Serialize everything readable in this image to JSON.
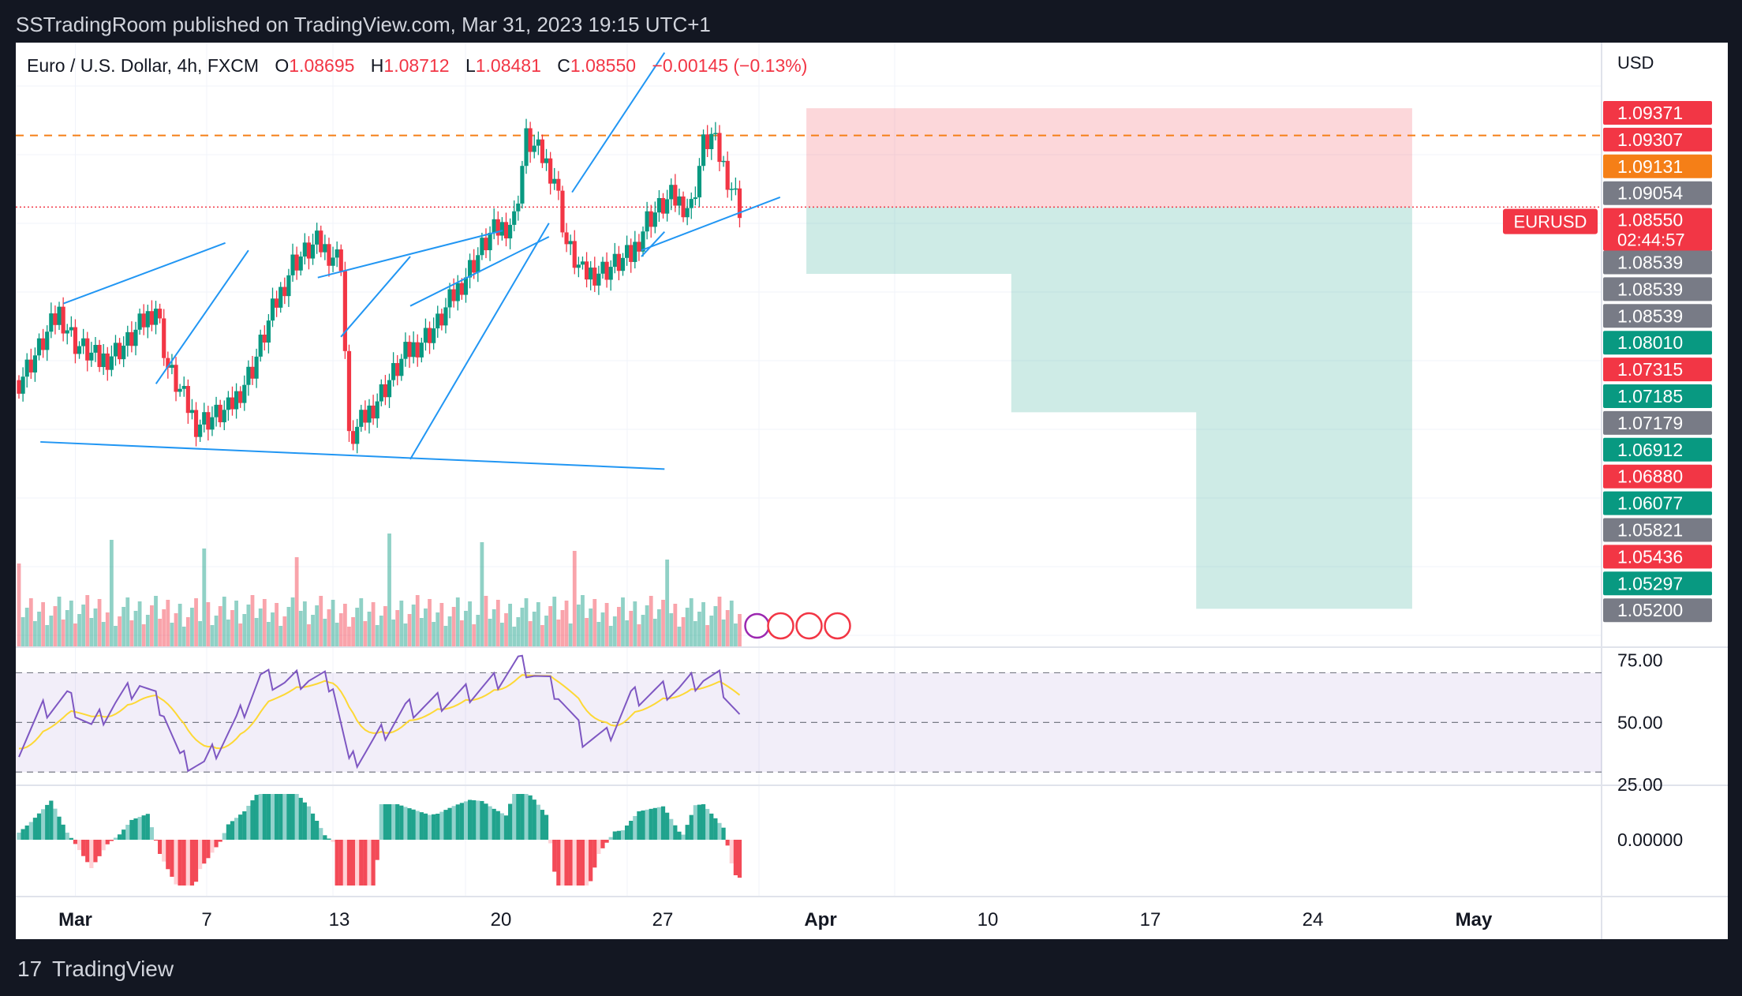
{
  "header": {
    "publisher_line": "SSTradingRoom published on TradingView.com, Mar 31, 2023 19:15 UTC+1"
  },
  "footer": {
    "brand": "TradingView",
    "logo_glyph": "17"
  },
  "legend": {
    "symbol": "Euro / U.S. Dollar, 4h, FXCM",
    "o_key": "O",
    "o_val": "1.08695",
    "h_key": "H",
    "h_val": "1.08712",
    "l_key": "L",
    "l_val": "1.08481",
    "c_key": "C",
    "c_val": "1.08550",
    "change": "−0.00145 (−0.13%)"
  },
  "price_axis": {
    "currency": "USD",
    "ticker_label": "EURUSD",
    "countdown": "02:44:57",
    "labels": [
      {
        "text": "1.09371",
        "color": "#f23645"
      },
      {
        "text": "1.09307",
        "color": "#f23645"
      },
      {
        "text": "1.09131",
        "color": "#f57f17"
      },
      {
        "text": "1.09054",
        "color": "#787b86"
      },
      {
        "text": "1.08550",
        "color": "#f23645"
      },
      {
        "text": "1.08539",
        "color": "#787b86"
      },
      {
        "text": "1.08539",
        "color": "#787b86"
      },
      {
        "text": "1.08539",
        "color": "#787b86"
      },
      {
        "text": "1.08010",
        "color": "#089981"
      },
      {
        "text": "1.07315",
        "color": "#f23645"
      },
      {
        "text": "1.07185",
        "color": "#089981"
      },
      {
        "text": "1.07179",
        "color": "#787b86"
      },
      {
        "text": "1.06912",
        "color": "#089981"
      },
      {
        "text": "1.06880",
        "color": "#f23645"
      },
      {
        "text": "1.06077",
        "color": "#089981"
      },
      {
        "text": "1.05821",
        "color": "#787b86"
      },
      {
        "text": "1.05436",
        "color": "#f23645"
      },
      {
        "text": "1.05297",
        "color": "#089981"
      },
      {
        "text": "1.05200",
        "color": "#787b86"
      }
    ]
  },
  "rsi_axis": [
    "75.00",
    "50.00",
    "25.00"
  ],
  "macd_axis": [
    "0.00000"
  ],
  "time_axis": [
    "Mar",
    "7",
    "13",
    "20",
    "27",
    "Apr",
    "10",
    "17",
    "24",
    "May"
  ],
  "colors": {
    "up": "#089981",
    "down": "#f23645",
    "trendline": "#2196f3",
    "rsi": "#7e57c2",
    "rsi_ma": "#fdd835",
    "level": "#f57f17"
  },
  "chart_data": {
    "type": "candlestick",
    "title": "Euro / U.S. Dollar, 4h, FXCM",
    "x_range": [
      "2023-02-28",
      "2023-05-07"
    ],
    "ylabel": "USD",
    "last_close": 1.0855,
    "resistance_level": 1.0913,
    "position": {
      "side": "short",
      "entry": 1.0855,
      "stop": 1.0935,
      "targets": [
        1.0801,
        1.0689,
        1.053
      ]
    },
    "trendlines": [
      {
        "from": [
          "2023-03-01",
          1.0777
        ],
        "to": [
          "2023-03-08",
          1.0826
        ]
      },
      {
        "from": [
          "2023-03-05",
          1.0712
        ],
        "to": [
          "2023-03-09",
          1.082
        ]
      },
      {
        "from": [
          "2023-03-12",
          1.0798
        ],
        "to": [
          "2023-03-20",
          1.0836
        ]
      },
      {
        "from": [
          "2023-03-13",
          1.075
        ],
        "to": [
          "2023-03-16",
          1.0815
        ]
      },
      {
        "from": [
          "2023-03-16",
          1.0775
        ],
        "to": [
          "2023-03-22",
          1.0831
        ]
      },
      {
        "from": [
          "2023-02-28",
          1.0665
        ],
        "to": [
          "2023-03-27",
          1.0643
        ]
      },
      {
        "from": [
          "2023-03-16",
          1.0651
        ],
        "to": [
          "2023-03-22",
          1.0842
        ]
      },
      {
        "from": [
          "2023-03-23",
          1.0867
        ],
        "to": [
          "2023-03-27",
          1.098
        ]
      },
      {
        "from": [
          "2023-03-26",
          1.0815
        ],
        "to": [
          "2023-03-27",
          1.0835
        ]
      },
      {
        "from": [
          "2023-03-26",
          1.082
        ],
        "to": [
          "2023-04-01",
          1.0863
        ]
      }
    ],
    "rsi": {
      "levels": [
        70,
        50,
        30
      ],
      "ylim": [
        25,
        80
      ]
    }
  }
}
